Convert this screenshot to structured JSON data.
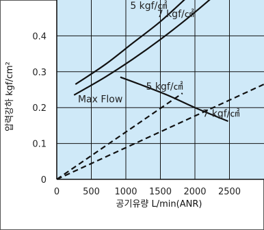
{
  "chart_data": {
    "type": "line",
    "xlabel": "공기유량 L/min(ANR)",
    "ylabel": "압력강하 kgf/cm²",
    "xlim": [
      0,
      3000
    ],
    "ylim": [
      0,
      0.5
    ],
    "x_ticks": [
      0,
      500,
      1000,
      1500,
      2000,
      2500
    ],
    "y_ticks": [
      0,
      0.1,
      0.2,
      0.3,
      0.4
    ],
    "x_tick_labels": [
      "0",
      "500",
      "1000",
      "1500",
      "2000",
      "2500"
    ],
    "y_tick_labels": [
      "0",
      "0.1",
      "0.2",
      "0.3",
      "0.4"
    ],
    "grid": true,
    "background_color": "#cfe9f8",
    "annotations": [
      {
        "text": "5 kgf/㎠",
        "x": 1330,
        "y": 0.475
      },
      {
        "text": "7 kgf/㎠",
        "x": 1720,
        "y": 0.452
      },
      {
        "text": "Max Flow",
        "x": 630,
        "y": 0.215
      },
      {
        "text": "5 kgf/㎠",
        "x": 1560,
        "y": 0.25
      },
      {
        "text": "7 kgf/㎠",
        "x": 2380,
        "y": 0.175
      }
    ],
    "series": [
      {
        "style": "solid",
        "x": [
          270,
          700,
          1100,
          1500,
          1900
        ],
        "y": [
          0.265,
          0.32,
          0.38,
          0.44,
          0.51
        ]
      },
      {
        "style": "solid",
        "x": [
          250,
          700,
          1100,
          1500,
          1900,
          2270
        ],
        "y": [
          0.235,
          0.285,
          0.335,
          0.39,
          0.45,
          0.51
        ]
      },
      {
        "style": "solid",
        "x": [
          920,
          1200,
          1600,
          2000,
          2480
        ],
        "y": [
          0.285,
          0.265,
          0.235,
          0.2,
          0.162
        ]
      },
      {
        "style": "dashed",
        "x": [
          0,
          1820
        ],
        "y": [
          0,
          0.24
        ]
      },
      {
        "style": "dashed",
        "x": [
          0,
          3000
        ],
        "y": [
          0,
          0.265
        ]
      }
    ]
  }
}
